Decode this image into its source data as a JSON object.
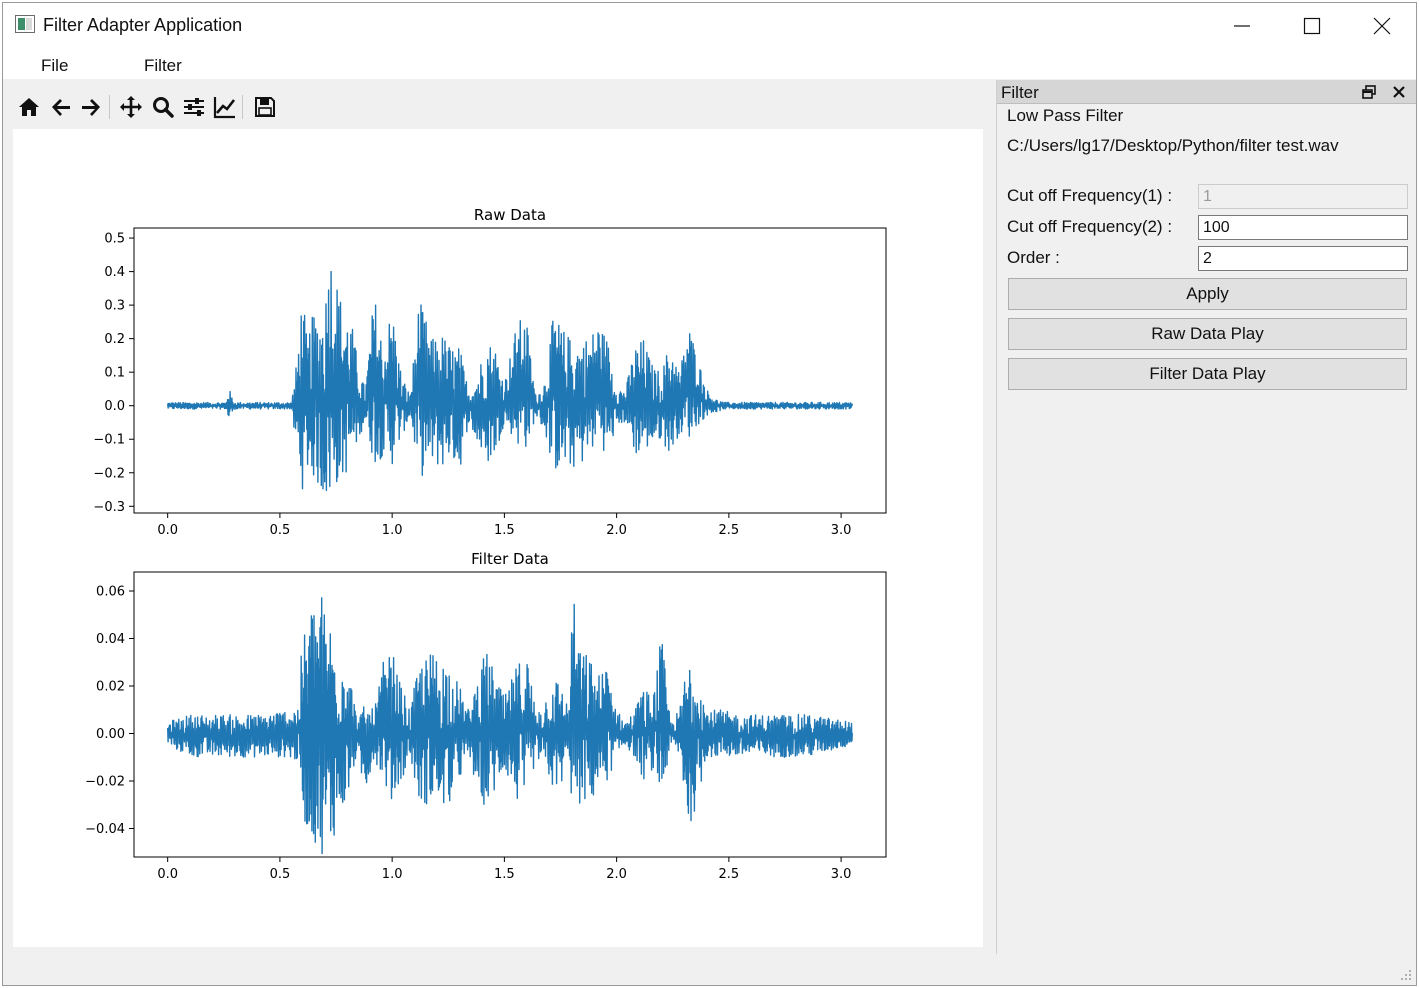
{
  "window": {
    "title": "Filter Adapter Application"
  },
  "menu": [
    "File",
    "Filter"
  ],
  "toolbar": {
    "tools": [
      "home-icon",
      "back-arrow-icon",
      "forward-arrow-icon",
      "pan-icon",
      "zoom-icon",
      "configure-subplots-icon",
      "edit-axis-icon",
      "save-icon"
    ]
  },
  "dock": {
    "title": "Filter",
    "group_label": "Low Pass Filter",
    "file_path": "C:/Users/lg17/Desktop/Python/filter test.wav",
    "cutoff1_label": "Cut off Frequency(1) :",
    "cutoff1_value": "1",
    "cutoff2_label": "Cut off Frequency(2) :",
    "cutoff2_value": "100",
    "order_label": "Order :",
    "order_value": "2",
    "apply_label": "Apply",
    "raw_play_label": "Raw Data Play",
    "filter_play_label": "Filter Data Play"
  },
  "colors": {
    "line": "#1f77b4",
    "dock_title": "#d6d6d6",
    "button_face": "#e1e1e1"
  },
  "chart_data": [
    {
      "type": "line",
      "title": "Raw Data",
      "xlabel": "",
      "ylabel": "",
      "xlim": [
        -0.15,
        3.2
      ],
      "ylim": [
        -0.32,
        0.53
      ],
      "xticks": [
        0.0,
        0.5,
        1.0,
        1.5,
        2.0,
        2.5,
        3.0
      ],
      "xtick_labels": [
        "0.0",
        "0.5",
        "1.0",
        "1.5",
        "2.0",
        "2.5",
        "3.0"
      ],
      "yticks": [
        -0.3,
        -0.2,
        -0.1,
        0.0,
        0.1,
        0.2,
        0.3,
        0.4,
        0.5
      ],
      "ytick_labels": [
        "−0.3",
        "−0.2",
        "−0.1",
        "0.0",
        "0.1",
        "0.2",
        "0.3",
        "0.4",
        "0.5"
      ],
      "grid": false,
      "series": [
        {
          "envelope": {
            "x": [
              0.0,
              0.26,
              0.27,
              0.29,
              0.3,
              0.55,
              0.57,
              0.6,
              0.62,
              0.65,
              0.7,
              0.72,
              0.74,
              0.78,
              0.82,
              0.85,
              0.88,
              0.92,
              0.96,
              1.0,
              1.04,
              1.08,
              1.12,
              1.18,
              1.22,
              1.26,
              1.3,
              1.34,
              1.38,
              1.42,
              1.46,
              1.5,
              1.56,
              1.6,
              1.64,
              1.68,
              1.72,
              1.76,
              1.8,
              1.84,
              1.88,
              1.92,
              1.96,
              2.0,
              2.04,
              2.08,
              2.12,
              2.16,
              2.2,
              2.24,
              2.28,
              2.32,
              2.36,
              2.4,
              2.44,
              2.48,
              2.55,
              2.7,
              2.85,
              3.05
            ],
            "upper": [
              0.01,
              0.01,
              0.06,
              0.02,
              0.01,
              0.01,
              0.1,
              0.35,
              0.2,
              0.28,
              0.3,
              0.5,
              0.42,
              0.3,
              0.25,
              0.12,
              0.05,
              0.34,
              0.18,
              0.3,
              0.1,
              0.03,
              0.32,
              0.2,
              0.22,
              0.18,
              0.18,
              0.05,
              0.1,
              0.2,
              0.18,
              0.07,
              0.26,
              0.25,
              0.03,
              0.08,
              0.28,
              0.23,
              0.2,
              0.2,
              0.21,
              0.25,
              0.2,
              0.06,
              0.05,
              0.18,
              0.2,
              0.12,
              0.1,
              0.2,
              0.1,
              0.25,
              0.15,
              0.05,
              0.02,
              0.01,
              0.01,
              0.01,
              0.01,
              0.01
            ],
            "lower": [
              -0.01,
              -0.01,
              -0.05,
              -0.02,
              -0.01,
              -0.01,
              -0.12,
              -0.25,
              -0.2,
              -0.22,
              -0.28,
              -0.3,
              -0.25,
              -0.22,
              -0.18,
              -0.1,
              -0.05,
              -0.18,
              -0.15,
              -0.18,
              -0.1,
              -0.03,
              -0.22,
              -0.18,
              -0.19,
              -0.15,
              -0.2,
              -0.05,
              -0.12,
              -0.18,
              -0.15,
              -0.05,
              -0.12,
              -0.13,
              -0.03,
              -0.08,
              -0.2,
              -0.19,
              -0.19,
              -0.18,
              -0.15,
              -0.1,
              -0.16,
              -0.06,
              -0.05,
              -0.15,
              -0.14,
              -0.12,
              -0.1,
              -0.15,
              -0.08,
              -0.1,
              -0.06,
              -0.03,
              -0.02,
              -0.01,
              -0.01,
              -0.01,
              -0.01,
              -0.01
            ]
          }
        }
      ]
    },
    {
      "type": "line",
      "title": "Filter Data",
      "xlabel": "",
      "ylabel": "",
      "xlim": [
        -0.15,
        3.2
      ],
      "ylim": [
        -0.052,
        0.068
      ],
      "xticks": [
        0.0,
        0.5,
        1.0,
        1.5,
        2.0,
        2.5,
        3.0
      ],
      "xtick_labels": [
        "0.0",
        "0.5",
        "1.0",
        "1.5",
        "2.0",
        "2.5",
        "3.0"
      ],
      "yticks": [
        -0.04,
        -0.02,
        0.0,
        0.02,
        0.04,
        0.06
      ],
      "ytick_labels": [
        "−0.04",
        "−0.02",
        "0.00",
        "0.02",
        "0.04",
        "0.06"
      ],
      "grid": false,
      "series": [
        {
          "envelope": {
            "x": [
              0.0,
              0.1,
              0.2,
              0.3,
              0.4,
              0.52,
              0.58,
              0.6,
              0.64,
              0.68,
              0.72,
              0.76,
              0.8,
              0.84,
              0.88,
              0.92,
              0.96,
              1.0,
              1.04,
              1.08,
              1.12,
              1.18,
              1.22,
              1.26,
              1.3,
              1.34,
              1.38,
              1.42,
              1.46,
              1.5,
              1.56,
              1.6,
              1.64,
              1.68,
              1.72,
              1.76,
              1.79,
              1.8,
              1.84,
              1.88,
              1.92,
              1.96,
              2.0,
              2.04,
              2.08,
              2.12,
              2.16,
              2.2,
              2.24,
              2.28,
              2.32,
              2.36,
              2.4,
              2.46,
              2.55,
              2.7,
              2.85,
              3.05
            ],
            "upper": [
              0.005,
              0.008,
              0.008,
              0.008,
              0.008,
              0.01,
              0.012,
              0.04,
              0.055,
              0.061,
              0.05,
              0.035,
              0.035,
              0.008,
              0.012,
              0.01,
              0.03,
              0.035,
              0.02,
              0.01,
              0.03,
              0.035,
              0.033,
              0.03,
              0.02,
              0.01,
              0.025,
              0.035,
              0.025,
              0.015,
              0.03,
              0.035,
              0.01,
              0.015,
              0.025,
              0.02,
              0.01,
              0.063,
              0.035,
              0.033,
              0.025,
              0.03,
              0.01,
              0.005,
              0.01,
              0.02,
              0.015,
              0.042,
              0.005,
              0.01,
              0.035,
              0.03,
              0.01,
              0.01,
              0.008,
              0.008,
              0.008,
              0.005
            ],
            "lower": [
              -0.005,
              -0.01,
              -0.01,
              -0.01,
              -0.01,
              -0.01,
              -0.012,
              -0.035,
              -0.045,
              -0.05,
              -0.053,
              -0.035,
              -0.03,
              -0.01,
              -0.025,
              -0.01,
              -0.02,
              -0.03,
              -0.02,
              -0.01,
              -0.03,
              -0.03,
              -0.032,
              -0.03,
              -0.02,
              -0.01,
              -0.025,
              -0.032,
              -0.025,
              -0.015,
              -0.03,
              -0.03,
              -0.01,
              -0.015,
              -0.025,
              -0.02,
              -0.01,
              -0.035,
              -0.03,
              -0.03,
              -0.025,
              -0.02,
              -0.01,
              -0.005,
              -0.01,
              -0.02,
              -0.015,
              -0.03,
              -0.005,
              -0.01,
              -0.04,
              -0.03,
              -0.01,
              -0.01,
              -0.01,
              -0.01,
              -0.01,
              -0.005
            ]
          }
        }
      ]
    }
  ]
}
